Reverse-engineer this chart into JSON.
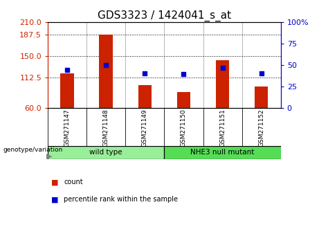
{
  "title": "GDS3323 / 1424041_s_at",
  "samples": [
    "GSM271147",
    "GSM271148",
    "GSM271149",
    "GSM271150",
    "GSM271151",
    "GSM271152"
  ],
  "counts": [
    120,
    188,
    100,
    88,
    143,
    97
  ],
  "percentiles": [
    44,
    50,
    40,
    39,
    47,
    40
  ],
  "ylim_left": [
    60,
    210
  ],
  "ylim_right": [
    0,
    100
  ],
  "yticks_left": [
    60,
    112.5,
    150,
    187.5,
    210
  ],
  "yticks_right": [
    0,
    25,
    50,
    75,
    100
  ],
  "hlines": [
    112.5,
    150,
    187.5
  ],
  "bar_color": "#CC2200",
  "dot_color": "#0000CC",
  "groups": [
    {
      "label": "wild type",
      "indices": [
        0,
        1,
        2
      ],
      "color": "#99EE99"
    },
    {
      "label": "NHE3 null mutant",
      "indices": [
        3,
        4,
        5
      ],
      "color": "#55DD55"
    }
  ],
  "group_label": "genotype/variation",
  "legend_count": "count",
  "legend_percentile": "percentile rank within the sample",
  "bg_color": "#FFFFFF",
  "plot_bg": "#FFFFFF",
  "tick_area_color": "#C8C8C8",
  "title_fontsize": 11,
  "tick_fontsize": 8,
  "sample_fontsize": 6.5
}
